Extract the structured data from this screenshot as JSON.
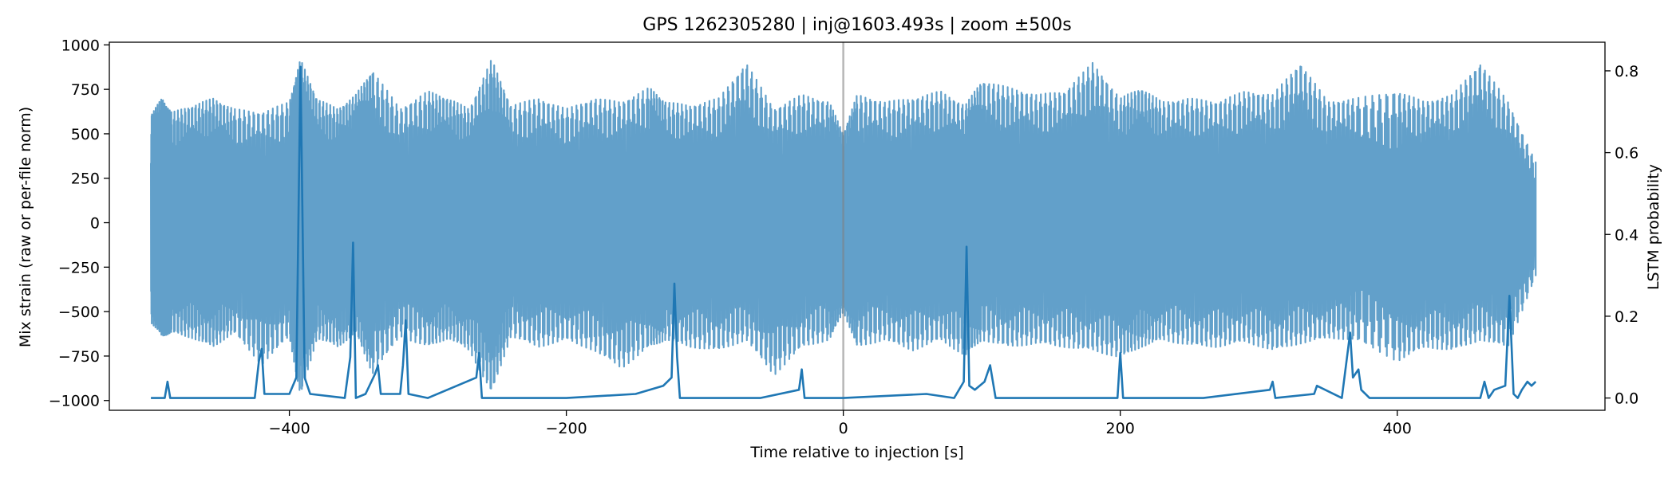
{
  "chart_data": {
    "type": "line",
    "title": "GPS 1262305280 | inj@1603.493s | zoom ±500s",
    "xlabel": "Time relative to injection [s]",
    "ylabel_left": "Mix strain (raw or per-file norm)",
    "ylabel_right": "LSTM probability",
    "xlim": [
      -530,
      550
    ],
    "ylim_left": [
      -1055,
      1015
    ],
    "ylim_right": [
      -0.03,
      0.87
    ],
    "x_ticks": [
      -400,
      -200,
      0,
      200,
      400
    ],
    "x_tick_labels": [
      "−400",
      "−200",
      "0",
      "200",
      "400"
    ],
    "y_left_ticks": [
      -1000,
      -750,
      -500,
      -250,
      0,
      250,
      500,
      750,
      1000
    ],
    "y_left_tick_labels": [
      "−1000",
      "−750",
      "−500",
      "−250",
      "0",
      "250",
      "500",
      "750",
      "1000"
    ],
    "y_right_ticks": [
      0.0,
      0.2,
      0.4,
      0.6,
      0.8
    ],
    "y_right_tick_labels": [
      "0.0",
      "0.2",
      "0.4",
      "0.6",
      "0.8"
    ],
    "injection_marker_x": 0,
    "grid": false,
    "series": [
      {
        "axis": "left",
        "color": "#1f77b4",
        "x": [
          -500,
          -492,
          -485,
          -470,
          -455,
          -440,
          -420,
          -400,
          -392,
          -380,
          -365,
          -352,
          -340,
          -320,
          -300,
          -285,
          -270,
          -254,
          -240,
          -220,
          -200,
          -180,
          -160,
          -140,
          -128,
          -110,
          -90,
          -70,
          -50,
          -30,
          -10,
          0,
          10,
          30,
          50,
          70,
          88,
          100,
          120,
          140,
          160,
          180,
          200,
          215,
          230,
          250,
          270,
          290,
          310,
          330,
          350,
          370,
          400,
          420,
          440,
          460,
          480,
          500
        ],
        "y_max": [
          610,
          700,
          620,
          660,
          700,
          640,
          620,
          680,
          920,
          700,
          640,
          720,
          860,
          640,
          740,
          700,
          640,
          920,
          660,
          700,
          640,
          700,
          680,
          760,
          680,
          660,
          700,
          900,
          640,
          720,
          680,
          500,
          720,
          680,
          700,
          740,
          660,
          800,
          760,
          720,
          740,
          900,
          700,
          760,
          680,
          700,
          680,
          740,
          720,
          900,
          680,
          700,
          740,
          680,
          720,
          900,
          680,
          340
        ],
        "y_min": [
          -560,
          -640,
          -620,
          -650,
          -700,
          -620,
          -800,
          -640,
          -980,
          -650,
          -700,
          -620,
          -850,
          -640,
          -700,
          -650,
          -720,
          -960,
          -640,
          -700,
          -660,
          -720,
          -820,
          -700,
          -660,
          -700,
          -720,
          -660,
          -860,
          -700,
          -660,
          -500,
          -700,
          -660,
          -720,
          -660,
          -750,
          -660,
          -700,
          -680,
          -700,
          -720,
          -760,
          -700,
          -660,
          -690,
          -700,
          -670,
          -720,
          -680,
          -650,
          -660,
          -780,
          -700,
          -720,
          -660,
          -700,
          -300
        ]
      },
      {
        "axis": "right",
        "color": "#1f77b4",
        "x": [
          -500,
          -490,
          -488,
          -486,
          -470,
          -425,
          -422,
          -420,
          -418,
          -400,
          -395,
          -392,
          -389,
          -385,
          -360,
          -356,
          -354,
          -352,
          -345,
          -338,
          -336,
          -334,
          -320,
          -318,
          -316,
          -314,
          -300,
          -265,
          -263,
          -261,
          -245,
          -200,
          -150,
          -130,
          -124,
          -122,
          -120,
          -118,
          -110,
          -60,
          -32,
          -30,
          -28,
          0,
          60,
          80,
          87,
          89,
          91,
          95,
          102,
          106,
          110,
          130,
          198,
          200,
          202,
          220,
          260,
          308,
          310,
          312,
          340,
          342,
          360,
          366,
          368,
          372,
          374,
          380,
          400,
          460,
          463,
          466,
          470,
          478,
          481,
          484,
          487,
          490,
          494,
          497,
          500
        ],
        "y": [
          0.0,
          0.0,
          0.04,
          0.0,
          0.0,
          0.0,
          0.09,
          0.12,
          0.01,
          0.01,
          0.05,
          0.81,
          0.05,
          0.01,
          0.0,
          0.1,
          0.38,
          0.0,
          0.01,
          0.06,
          0.08,
          0.01,
          0.01,
          0.08,
          0.19,
          0.01,
          0.0,
          0.05,
          0.11,
          0.0,
          0.0,
          0.0,
          0.01,
          0.03,
          0.05,
          0.28,
          0.1,
          0.0,
          0.0,
          0.0,
          0.02,
          0.07,
          0.0,
          0.0,
          0.01,
          0.0,
          0.04,
          0.37,
          0.03,
          0.02,
          0.04,
          0.08,
          0.0,
          0.0,
          0.0,
          0.11,
          0.0,
          0.0,
          0.0,
          0.02,
          0.04,
          0.0,
          0.01,
          0.03,
          0.0,
          0.16,
          0.05,
          0.07,
          0.02,
          0.0,
          0.0,
          0.0,
          0.04,
          0.0,
          0.02,
          0.03,
          0.25,
          0.01,
          0.0,
          0.02,
          0.04,
          0.03,
          0.04
        ]
      }
    ]
  }
}
